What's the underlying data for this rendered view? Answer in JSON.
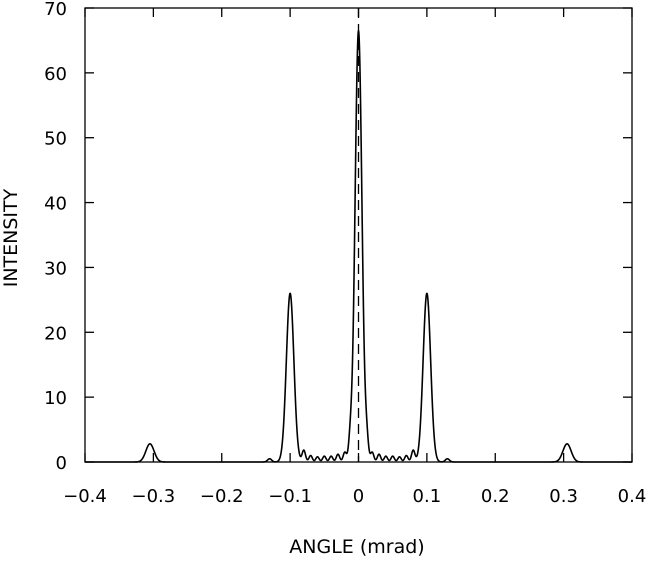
{
  "chart_data": {
    "type": "line",
    "title": "",
    "xlabel": "ANGLE (mrad)",
    "ylabel": "INTENSITY",
    "xlim": [
      -0.4,
      0.4
    ],
    "ylim": [
      0,
      70
    ],
    "xticks": [
      -0.4,
      -0.3,
      -0.2,
      -0.1,
      0,
      0.1,
      0.2,
      0.3,
      0.4
    ],
    "xtick_labels": [
      "−0.4",
      "−0.3",
      "−0.2",
      "−0.1",
      "0",
      "0.1",
      "0.2",
      "0.3",
      "0.4"
    ],
    "yticks": [
      0,
      10,
      20,
      30,
      40,
      50,
      60,
      70
    ],
    "ytick_labels": [
      "0",
      "10",
      "20",
      "30",
      "40",
      "50",
      "60",
      "70"
    ],
    "grid": false,
    "reference_line": {
      "x": 0,
      "style": "dashed"
    },
    "series": [
      {
        "style": "solid",
        "peaks": [
          {
            "x": -0.305,
            "y": 2.8,
            "width": 0.006
          },
          {
            "x": -0.1,
            "y": 26.0,
            "width": 0.0055
          },
          {
            "x": 0.0,
            "y": 66.5,
            "width": 0.005
          },
          {
            "x": 0.1,
            "y": 26.0,
            "width": 0.0055
          },
          {
            "x": 0.305,
            "y": 2.8,
            "width": 0.006
          },
          {
            "x": -0.08,
            "y": 1.8,
            "width": 0.0025
          },
          {
            "x": -0.07,
            "y": 1.0,
            "width": 0.0025
          },
          {
            "x": -0.06,
            "y": 0.8,
            "width": 0.0025
          },
          {
            "x": -0.05,
            "y": 0.9,
            "width": 0.0025
          },
          {
            "x": -0.04,
            "y": 0.9,
            "width": 0.0025
          },
          {
            "x": -0.03,
            "y": 1.2,
            "width": 0.0025
          },
          {
            "x": -0.02,
            "y": 1.5,
            "width": 0.0025
          },
          {
            "x": -0.012,
            "y": 3.0,
            "width": 0.0025
          },
          {
            "x": 0.012,
            "y": 3.0,
            "width": 0.0025
          },
          {
            "x": 0.02,
            "y": 1.5,
            "width": 0.0025
          },
          {
            "x": 0.03,
            "y": 1.2,
            "width": 0.0025
          },
          {
            "x": 0.04,
            "y": 0.9,
            "width": 0.0025
          },
          {
            "x": 0.05,
            "y": 0.9,
            "width": 0.0025
          },
          {
            "x": 0.06,
            "y": 0.8,
            "width": 0.0025
          },
          {
            "x": 0.07,
            "y": 1.0,
            "width": 0.0025
          },
          {
            "x": 0.08,
            "y": 1.8,
            "width": 0.0025
          },
          {
            "x": -0.13,
            "y": 0.5,
            "width": 0.003
          },
          {
            "x": 0.13,
            "y": 0.5,
            "width": 0.003
          }
        ]
      }
    ]
  }
}
